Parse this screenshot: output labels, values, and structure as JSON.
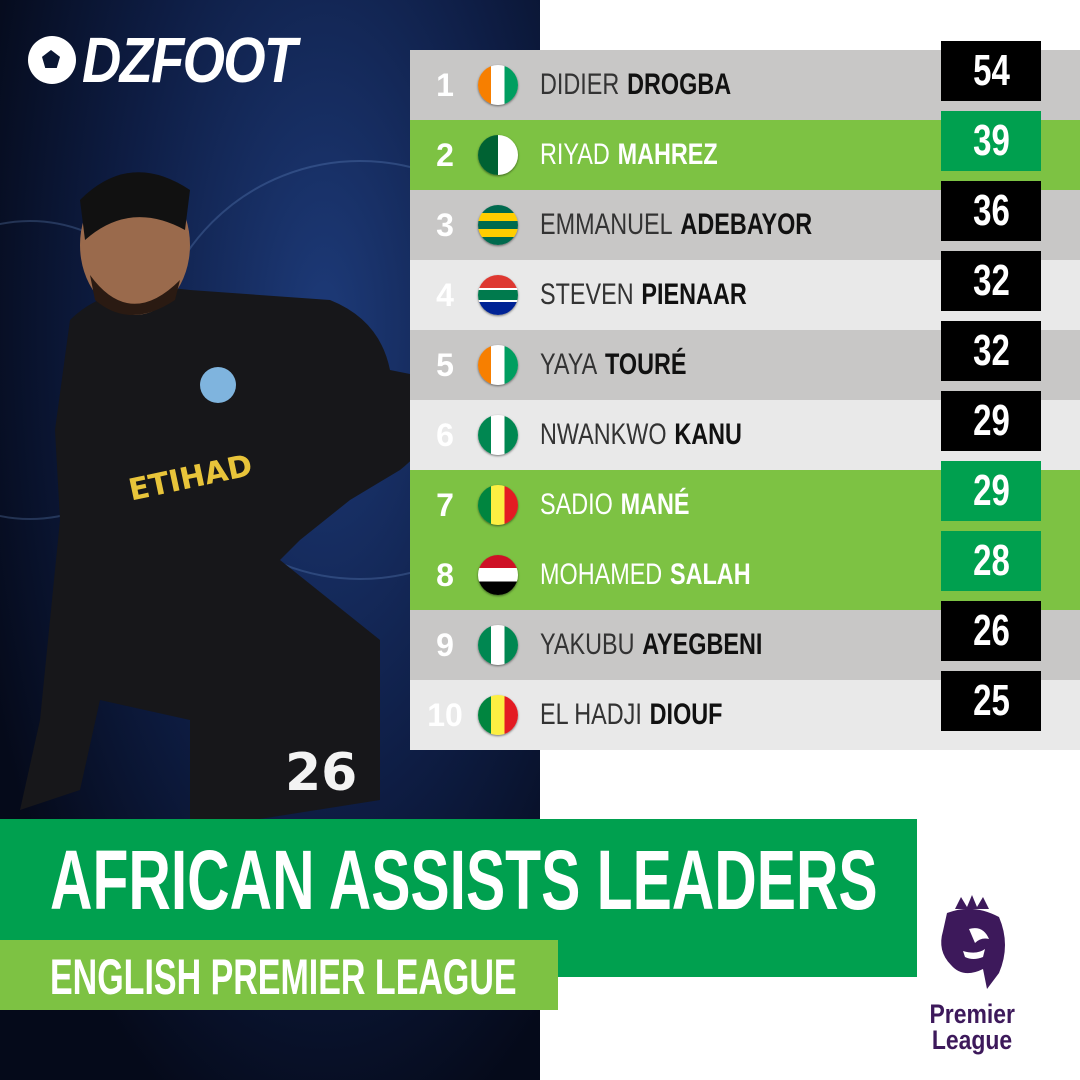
{
  "brand": {
    "logo_text": "DZFOOT"
  },
  "colors": {
    "gray_row": "#c8c7c6",
    "light_row": "#e9e9e9",
    "green_row": "#7dc243",
    "value_black": "#000000",
    "value_green": "#00a04f",
    "title_green": "#00a04f",
    "subtitle_green": "#7dc243",
    "pl_purple": "#3d195b"
  },
  "ranking": [
    {
      "rank": "1",
      "first": "DIDIER",
      "last": "DROGBA",
      "value": "54",
      "flag": "ivory-coast",
      "style": "gray"
    },
    {
      "rank": "2",
      "first": "RIYAD",
      "last": "MAHREZ",
      "value": "39",
      "flag": "algeria",
      "style": "green"
    },
    {
      "rank": "3",
      "first": "EMMANUEL",
      "last": "ADEBAYOR",
      "value": "36",
      "flag": "togo",
      "style": "gray"
    },
    {
      "rank": "4",
      "first": "STEVEN",
      "last": "PIENAAR",
      "value": "32",
      "flag": "south-africa",
      "style": "light"
    },
    {
      "rank": "5",
      "first": "YAYA",
      "last": "TOURÉ",
      "value": "32",
      "flag": "ivory-coast",
      "style": "gray"
    },
    {
      "rank": "6",
      "first": "NWANKWO",
      "last": "KANU",
      "value": "29",
      "flag": "nigeria",
      "style": "light"
    },
    {
      "rank": "7",
      "first": "SADIO",
      "last": "MANÉ",
      "value": "29",
      "flag": "senegal",
      "style": "green"
    },
    {
      "rank": "8",
      "first": "MOHAMED",
      "last": "SALAH",
      "value": "28",
      "flag": "egypt",
      "style": "green"
    },
    {
      "rank": "9",
      "first": "YAKUBU",
      "last": "AYEGBENI",
      "value": "26",
      "flag": "nigeria",
      "style": "gray"
    },
    {
      "rank": "10",
      "first": "EL HADJI",
      "last": "DIOUF",
      "value": "25",
      "flag": "senegal",
      "style": "light"
    }
  ],
  "title": "AFRICAN ASSISTS LEADERS",
  "subtitle": "ENGLISH PREMIER LEAGUE",
  "league_logo": {
    "text": "Premier League"
  }
}
